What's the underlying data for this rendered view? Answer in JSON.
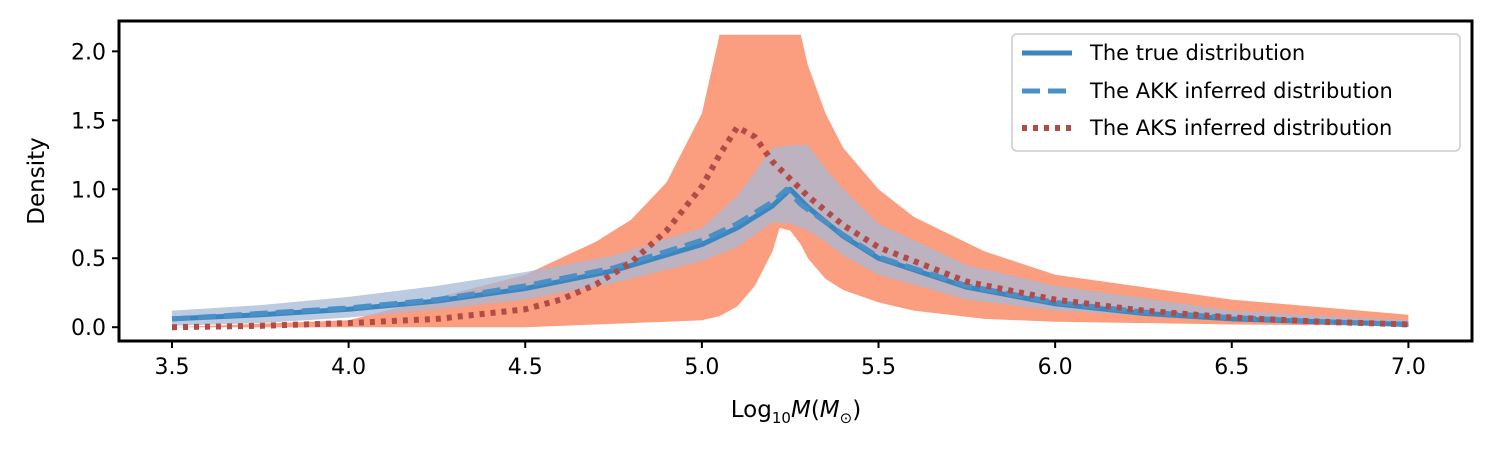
{
  "chart_data": {
    "type": "line",
    "title": "",
    "xlabel": {
      "prefix": "Log",
      "sub": "10",
      "italic": "M",
      "paren_open": "(",
      "unit": "M",
      "unit_sub": "⊙",
      "paren_close": ")"
    },
    "ylabel": "Density",
    "xlim": [
      3.35,
      7.18
    ],
    "ylim": [
      -0.1,
      2.22
    ],
    "xticks": [
      3.5,
      4.0,
      4.5,
      5.0,
      5.5,
      6.0,
      6.5,
      7.0
    ],
    "xtick_labels": [
      "3.5",
      "4.0",
      "4.5",
      "5.0",
      "5.5",
      "6.0",
      "6.5",
      "7.0"
    ],
    "yticks": [
      0.0,
      0.5,
      1.0,
      1.5,
      2.0
    ],
    "ytick_labels": [
      "0.0",
      "0.5",
      "1.0",
      "1.5",
      "2.0"
    ],
    "grid": false,
    "legend_position": "top-right",
    "bands": [
      {
        "name": "AKS uncertainty band",
        "color": "#fa8c68",
        "opacity": 0.85,
        "x": [
          3.5,
          4.0,
          4.5,
          4.7,
          4.8,
          4.9,
          5.0,
          5.05,
          5.1,
          5.15,
          5.2,
          5.22,
          5.25,
          5.28,
          5.3,
          5.35,
          5.4,
          5.5,
          5.6,
          5.8,
          6.0,
          6.5,
          7.0
        ],
        "upper": [
          0.0,
          0.05,
          0.38,
          0.62,
          0.78,
          1.05,
          1.55,
          2.12,
          2.12,
          2.12,
          2.12,
          2.12,
          2.12,
          2.12,
          1.9,
          1.55,
          1.3,
          1.0,
          0.8,
          0.55,
          0.38,
          0.2,
          0.09
        ],
        "lower": [
          0.0,
          0.0,
          0.0,
          0.02,
          0.03,
          0.04,
          0.05,
          0.08,
          0.15,
          0.3,
          0.55,
          0.72,
          0.7,
          0.6,
          0.5,
          0.35,
          0.27,
          0.18,
          0.12,
          0.06,
          0.04,
          0.02,
          0.01
        ]
      },
      {
        "name": "AKK uncertainty band",
        "color": "#a7b9d6",
        "opacity": 0.75,
        "x": [
          3.5,
          3.75,
          4.0,
          4.25,
          4.5,
          4.75,
          5.0,
          5.1,
          5.2,
          5.25,
          5.3,
          5.35,
          5.4,
          5.5,
          5.75,
          6.0,
          6.5,
          7.0
        ],
        "upper": [
          0.12,
          0.16,
          0.22,
          0.3,
          0.4,
          0.52,
          0.72,
          0.95,
          1.3,
          1.32,
          1.32,
          1.15,
          1.0,
          0.75,
          0.45,
          0.3,
          0.12,
          0.05
        ],
        "lower": [
          0.01,
          0.03,
          0.07,
          0.13,
          0.2,
          0.32,
          0.48,
          0.58,
          0.76,
          0.75,
          0.7,
          0.62,
          0.52,
          0.38,
          0.2,
          0.12,
          0.05,
          0.02
        ]
      }
    ],
    "series": [
      {
        "name": "The true distribution",
        "style": "solid",
        "color": "#3a86c0",
        "x": [
          3.5,
          3.75,
          4.0,
          4.25,
          4.5,
          4.75,
          5.0,
          5.1,
          5.2,
          5.25,
          5.3,
          5.4,
          5.5,
          5.75,
          6.0,
          6.25,
          6.5,
          6.75,
          7.0
        ],
        "y": [
          0.06,
          0.09,
          0.13,
          0.19,
          0.28,
          0.41,
          0.6,
          0.72,
          0.88,
          1.0,
          0.87,
          0.66,
          0.5,
          0.29,
          0.17,
          0.1,
          0.06,
          0.04,
          0.02
        ]
      },
      {
        "name": "The AKK inferred distribution",
        "style": "dashed",
        "color": "#4a90c6",
        "x": [
          3.5,
          3.75,
          4.0,
          4.25,
          4.5,
          4.75,
          5.0,
          5.1,
          5.2,
          5.24,
          5.28,
          5.4,
          5.5,
          5.75,
          6.0,
          6.25,
          6.5,
          6.75,
          7.0
        ],
        "y": [
          0.06,
          0.1,
          0.14,
          0.2,
          0.3,
          0.43,
          0.63,
          0.75,
          0.91,
          1.0,
          0.89,
          0.67,
          0.51,
          0.3,
          0.18,
          0.11,
          0.07,
          0.04,
          0.02
        ]
      },
      {
        "name": "The AKS inferred distribution",
        "style": "dotted",
        "color": "#b24a46",
        "x": [
          3.5,
          3.75,
          4.0,
          4.25,
          4.5,
          4.6,
          4.7,
          4.8,
          4.9,
          5.0,
          5.05,
          5.1,
          5.15,
          5.2,
          5.3,
          5.4,
          5.5,
          5.75,
          6.0,
          6.25,
          6.5,
          6.75,
          7.0
        ],
        "y": [
          0.0,
          0.01,
          0.03,
          0.06,
          0.13,
          0.2,
          0.31,
          0.47,
          0.7,
          1.02,
          1.25,
          1.45,
          1.38,
          1.2,
          0.95,
          0.74,
          0.58,
          0.33,
          0.2,
          0.12,
          0.07,
          0.04,
          0.02
        ]
      }
    ]
  }
}
